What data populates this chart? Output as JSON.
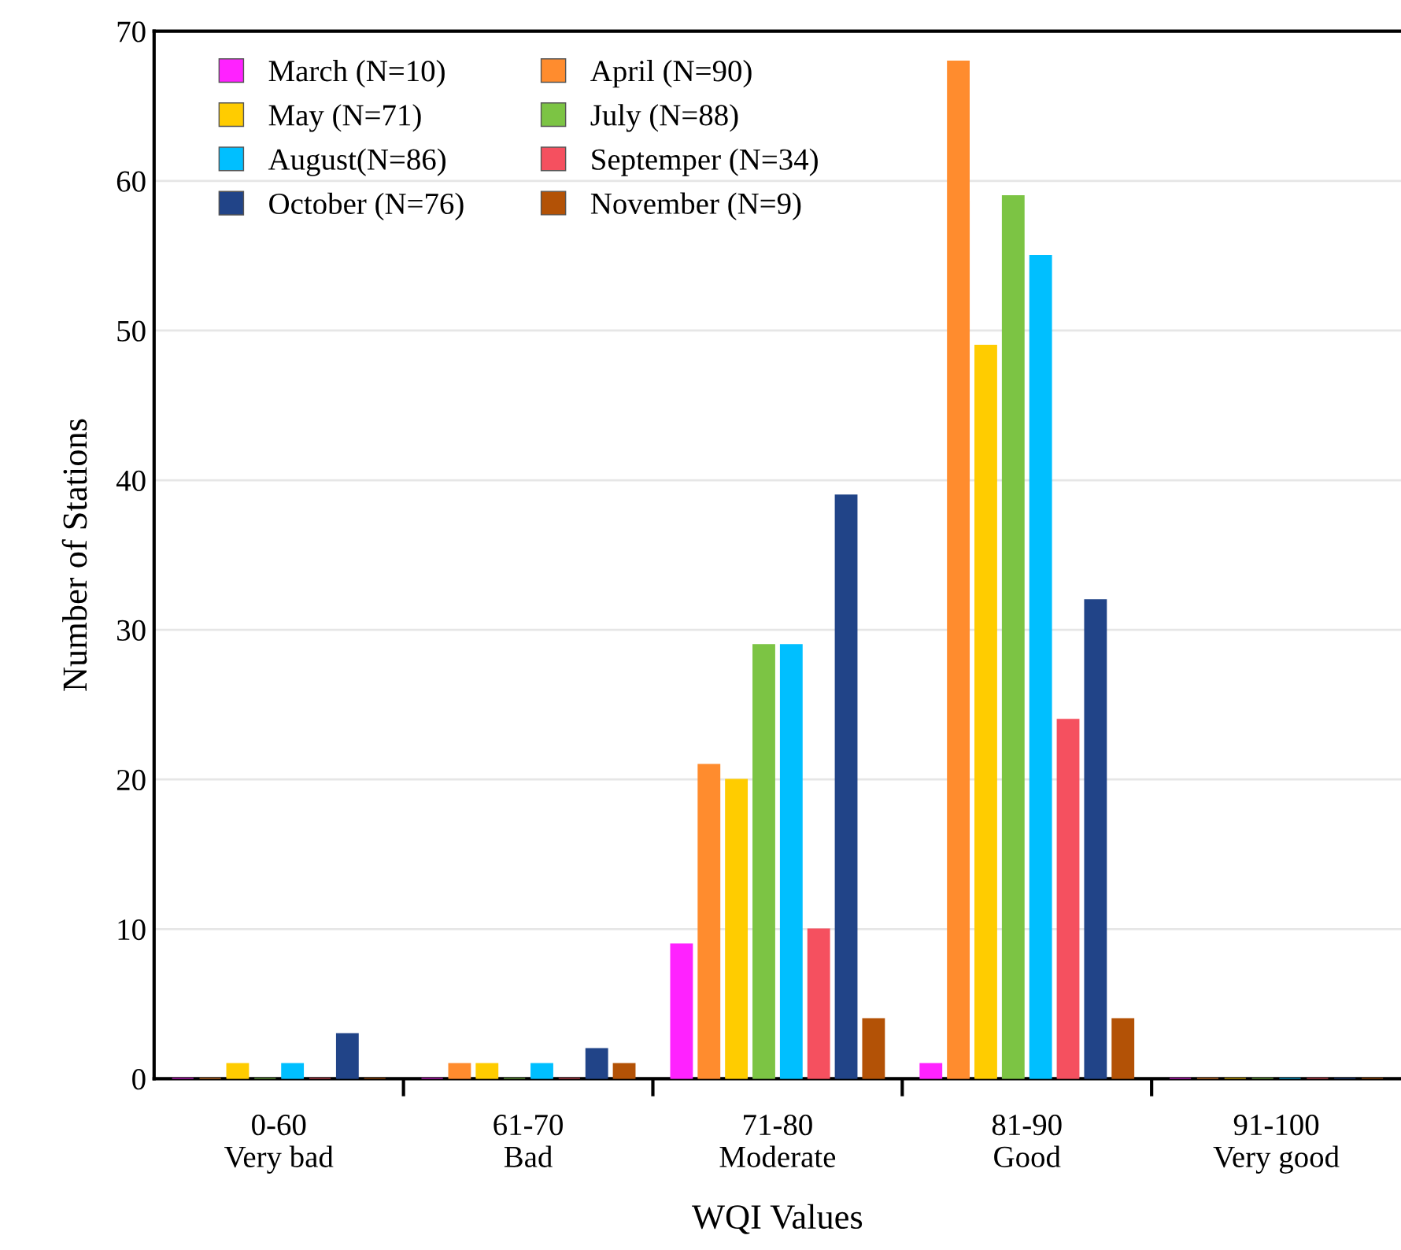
{
  "chart_data": {
    "type": "bar",
    "xlabel": "WQI Values",
    "ylabel": "Number of Stations",
    "categories": [
      "0-60\nVery bad",
      "61-70\nBad",
      "71-80\nModerate",
      "81-90\nGood",
      "91-100\nVery good"
    ],
    "series": [
      {
        "name": "March (N=10)",
        "color": "#ff22ff",
        "values": [
          0,
          0,
          9,
          1,
          0
        ]
      },
      {
        "name": "April (N=90)",
        "color": "#ff8c2e",
        "values": [
          0,
          1,
          21,
          68,
          0
        ]
      },
      {
        "name": "May (N=71)",
        "color": "#ffcc00",
        "values": [
          1,
          1,
          20,
          49,
          0
        ]
      },
      {
        "name": "July (N=88)",
        "color": "#7cc444",
        "values": [
          0,
          0,
          29,
          59,
          0
        ]
      },
      {
        "name": "August(N=86)",
        "color": "#00bfff",
        "values": [
          1,
          1,
          29,
          55,
          0
        ]
      },
      {
        "name": "Septemper (N=34)",
        "color": "#f5505f",
        "values": [
          0,
          0,
          10,
          24,
          0
        ]
      },
      {
        "name": "October (N=76)",
        "color": "#214488",
        "values": [
          3,
          2,
          39,
          32,
          0
        ]
      },
      {
        "name": "November (N=9)",
        "color": "#b35206",
        "values": [
          0,
          1,
          4,
          4,
          0
        ]
      }
    ],
    "ylim": [
      0,
      70
    ],
    "yticks": [
      0,
      10,
      20,
      30,
      40,
      50,
      60,
      70
    ],
    "grid": "y",
    "legend": "top left"
  }
}
